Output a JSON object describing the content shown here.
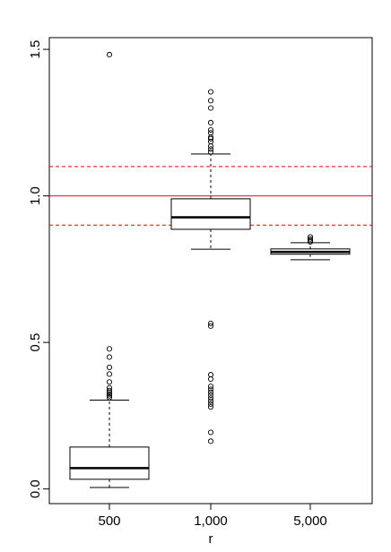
{
  "chart_data": {
    "type": "boxplot",
    "title": "",
    "xlabel": "r",
    "ylabel": "",
    "ylim": [
      -0.05,
      1.54
    ],
    "y_ticks": [
      0.0,
      0.5,
      1.0,
      1.5
    ],
    "y_tick_labels": [
      "0.0",
      "0.5",
      "1.0",
      "1.5"
    ],
    "categories": [
      "500",
      "1,000",
      "5,000"
    ],
    "boxes": [
      {
        "category": "500",
        "whisker_low": 0.005,
        "q1": 0.033,
        "median": 0.071,
        "q3": 0.143,
        "whisker_high": 0.303,
        "outliers": [
          0.312,
          0.318,
          0.324,
          0.33,
          0.336,
          0.345,
          0.365,
          0.392,
          0.415,
          0.45,
          0.478,
          1.482
        ]
      },
      {
        "category": "1,000",
        "whisker_low": 0.818,
        "q1": 0.886,
        "median": 0.927,
        "q3": 0.99,
        "whisker_high": 1.143,
        "outliers": [
          0.163,
          0.193,
          0.28,
          0.29,
          0.3,
          0.31,
          0.32,
          0.33,
          0.34,
          0.35,
          0.375,
          0.39,
          0.556,
          0.565,
          1.15,
          1.16,
          1.17,
          1.185,
          1.195,
          1.2,
          1.215,
          1.225,
          1.25,
          1.3,
          1.325,
          1.355
        ]
      },
      {
        "category": "5,000",
        "whisker_low": 0.782,
        "q1": 0.801,
        "median": 0.809,
        "q3": 0.819,
        "whisker_high": 0.84,
        "outliers": [
          0.843,
          0.848,
          0.853,
          0.86
        ]
      }
    ],
    "reference_lines": [
      {
        "value": 1.0,
        "style": "solid",
        "color": "#ff0000"
      },
      {
        "value": 1.1,
        "style": "dashed",
        "color": "#ff0000"
      },
      {
        "value": 0.9,
        "style": "dashed",
        "color": "#ff0000"
      }
    ],
    "grid": false,
    "legend": "none"
  }
}
